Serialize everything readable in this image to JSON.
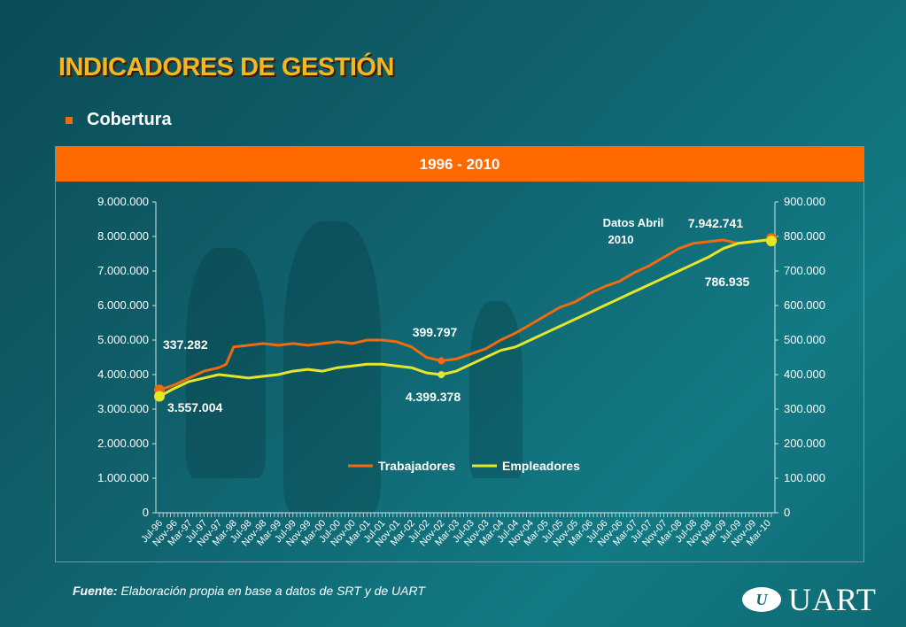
{
  "slide": {
    "title": "INDICADORES DE GESTIÓN",
    "bullet": "Cobertura"
  },
  "source": {
    "label": "Fuente:",
    "text": "Elaboración propia en base a datos de SRT y de UART"
  },
  "logo": {
    "mark": "U",
    "text": "UART"
  },
  "colors": {
    "accent": "#ff6a00",
    "title": "#f3b81f",
    "trabajadores": "#f06a10",
    "empleadores": "#e6e629"
  },
  "chart_data": {
    "type": "line",
    "title": "1996 - 2010",
    "x_ticks": [
      "Jul-96",
      "Nov-96",
      "Mar-97",
      "Jul-97",
      "Nov-97",
      "Mar-98",
      "Jul-98",
      "Nov-98",
      "Mar-99",
      "Jul-99",
      "Nov-99",
      "Mar-00",
      "Jul-00",
      "Nov-00",
      "Mar-01",
      "Jul-01",
      "Nov-01",
      "Mar-02",
      "Jul-02",
      "Nov-02",
      "Mar-03",
      "Jul-03",
      "Nov-03",
      "Mar-04",
      "Jul-04",
      "Nov-04",
      "Mar-05",
      "Jul-05",
      "Nov-05",
      "Mar-06",
      "Jul-06",
      "Nov-06",
      "Mar-07",
      "Jul-07",
      "Nov-07",
      "Mar-08",
      "Jul-08",
      "Nov-08",
      "Mar-09",
      "Jul-09",
      "Nov-09",
      "Mar-10"
    ],
    "y_left": {
      "min": 0,
      "max": 9000000,
      "ticks": [
        "0",
        "1.000.000",
        "2.000.000",
        "3.000.000",
        "4.000.000",
        "5.000.000",
        "6.000.000",
        "7.000.000",
        "8.000.000",
        "9.000.000"
      ]
    },
    "y_right": {
      "min": 0,
      "max": 900000,
      "ticks": [
        "0",
        "100.000",
        "200.000",
        "300.000",
        "400.000",
        "500.000",
        "600.000",
        "700.000",
        "800.000",
        "900.000"
      ]
    },
    "legend": {
      "position": "center"
    },
    "series": [
      {
        "name": "Trabajadores",
        "axis": "left",
        "color": "#f06a10",
        "x": [
          "Jul-96",
          "Nov-96",
          "Mar-97",
          "Jul-97",
          "Nov-97",
          "Jan-98",
          "Mar-98",
          "Jul-98",
          "Nov-98",
          "Mar-99",
          "Jul-99",
          "Nov-99",
          "Mar-00",
          "Jul-00",
          "Nov-00",
          "Mar-01",
          "Jul-01",
          "Nov-01",
          "Mar-02",
          "Jul-02",
          "Nov-02",
          "Mar-03",
          "Jul-03",
          "Nov-03",
          "Mar-04",
          "Jul-04",
          "Nov-04",
          "Mar-05",
          "Jul-05",
          "Nov-05",
          "Mar-06",
          "Jul-06",
          "Nov-06",
          "Mar-07",
          "Jul-07",
          "Nov-07",
          "Mar-08",
          "Jul-08",
          "Nov-08",
          "Mar-09",
          "Jul-09",
          "Nov-09",
          "Mar-10",
          "Apr-10"
        ],
        "values": [
          3557004,
          3700000,
          3900000,
          4100000,
          4200000,
          4300000,
          4800000,
          4850000,
          4900000,
          4850000,
          4900000,
          4850000,
          4900000,
          4950000,
          4900000,
          5000000,
          5000000,
          4950000,
          4800000,
          4500000,
          4400000,
          4450000,
          4600000,
          4750000,
          5000000,
          5200000,
          5450000,
          5700000,
          5950000,
          6100000,
          6350000,
          6550000,
          6700000,
          6950000,
          7150000,
          7400000,
          7650000,
          7800000,
          7850000,
          7900000,
          7800000,
          7850000,
          7900000,
          7942741
        ]
      },
      {
        "name": "Empleadores",
        "axis": "right",
        "color": "#e6e629",
        "x": [
          "Jul-96",
          "Nov-96",
          "Mar-97",
          "Jul-97",
          "Nov-97",
          "Mar-98",
          "Jul-98",
          "Nov-98",
          "Mar-99",
          "Jul-99",
          "Nov-99",
          "Mar-00",
          "Jul-00",
          "Nov-00",
          "Mar-01",
          "Jul-01",
          "Nov-01",
          "Mar-02",
          "Jul-02",
          "Nov-02",
          "Mar-03",
          "Jul-03",
          "Nov-03",
          "Mar-04",
          "Jul-04",
          "Nov-04",
          "Mar-05",
          "Jul-05",
          "Nov-05",
          "Mar-06",
          "Jul-06",
          "Nov-06",
          "Mar-07",
          "Jul-07",
          "Nov-07",
          "Mar-08",
          "Jul-08",
          "Nov-08",
          "Mar-09",
          "Jul-09",
          "Nov-09",
          "Mar-10",
          "Apr-10"
        ],
        "values": [
          337282,
          360000,
          380000,
          390000,
          400000,
          395000,
          390000,
          395000,
          400000,
          410000,
          415000,
          410000,
          420000,
          425000,
          430000,
          430000,
          425000,
          420000,
          405000,
          399797,
          410000,
          430000,
          450000,
          470000,
          480000,
          500000,
          520000,
          540000,
          560000,
          580000,
          600000,
          620000,
          640000,
          660000,
          680000,
          700000,
          720000,
          740000,
          765000,
          780000,
          785000,
          790000,
          786935
        ]
      }
    ],
    "annotations": [
      {
        "text": "3.557.004",
        "series": "Trabajadores",
        "x": "Jul-96"
      },
      {
        "text": "337.282",
        "series": "Empleadores",
        "x": "Jul-96"
      },
      {
        "text": "4.399.378",
        "series": "Trabajadores",
        "x": "Nov-02"
      },
      {
        "text": "399.797",
        "series": "Empleadores",
        "x": "Nov-02"
      },
      {
        "text": "7.942.741",
        "series": "Trabajadores",
        "x": "Apr-10"
      },
      {
        "text": "786.935",
        "series": "Empleadores",
        "x": "Apr-10"
      },
      {
        "text": "Datos Abril",
        "line2": "2010"
      }
    ]
  }
}
